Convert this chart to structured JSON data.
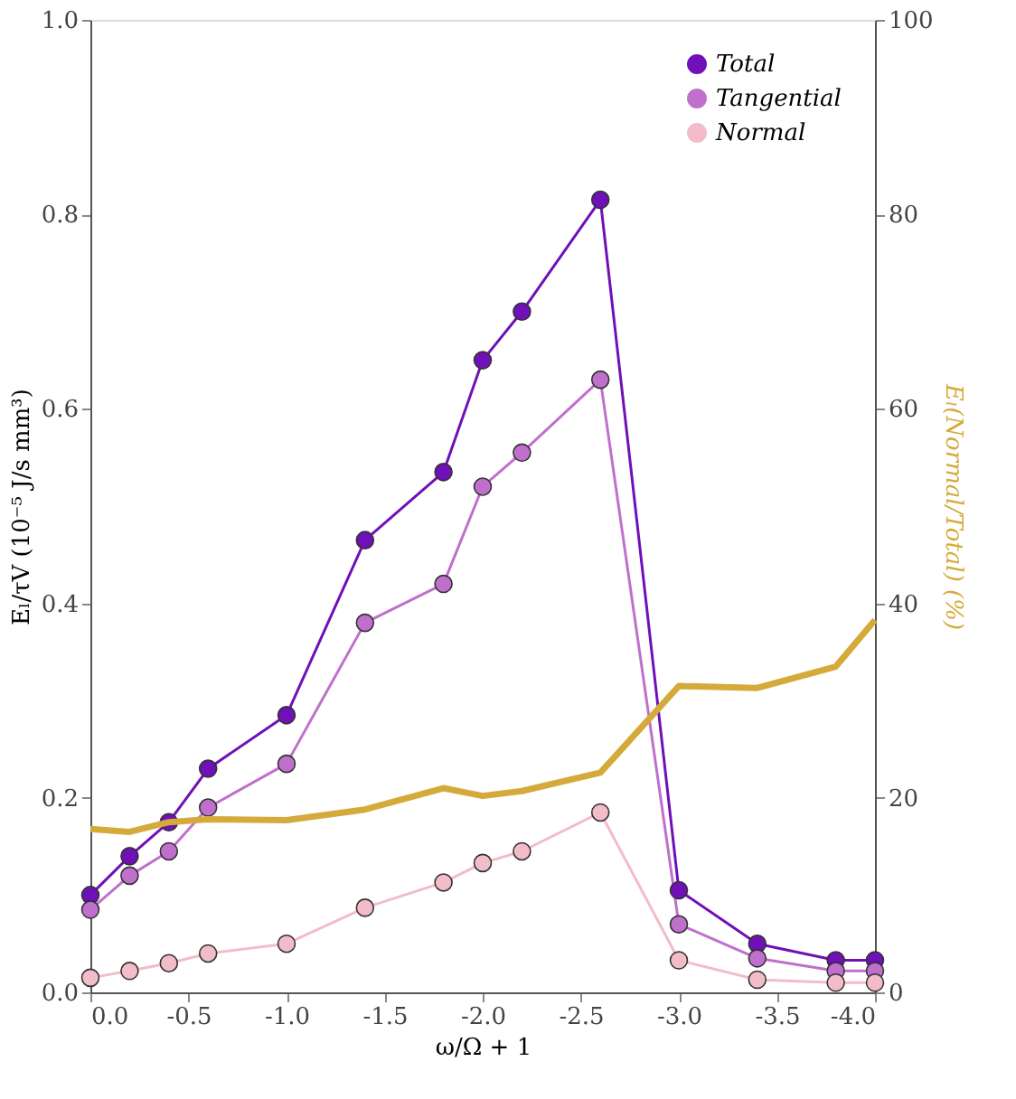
{
  "chart_data": {
    "type": "line",
    "xlabel": "ω/Ω + 1",
    "ylabel": "Eₗ/τV (10⁻⁵ J/s mm³)",
    "y2label": "Eₗ(Normal/Total) (%)",
    "x": [
      0,
      -0.2,
      -0.4,
      -0.6,
      -1.0,
      -1.4,
      -1.8,
      -2.0,
      -2.2,
      -2.6,
      -3.0,
      -3.4,
      -3.8,
      -4.0
    ],
    "series": [
      {
        "name": "Total",
        "color": "#7010b8",
        "values": [
          0.1,
          0.14,
          0.175,
          0.23,
          0.285,
          0.465,
          0.535,
          0.65,
          0.7,
          0.815,
          0.105,
          0.05,
          0.033,
          0.033
        ]
      },
      {
        "name": "Tangential",
        "color": "#c070cc",
        "values": [
          0.085,
          0.12,
          0.145,
          0.19,
          0.235,
          0.38,
          0.42,
          0.52,
          0.555,
          0.63,
          0.07,
          0.035,
          0.022,
          0.022
        ]
      },
      {
        "name": "Normal",
        "color": "#f2bcc8",
        "values": [
          0.015,
          0.022,
          0.03,
          0.04,
          0.05,
          0.087,
          0.113,
          0.133,
          0.145,
          0.185,
          0.033,
          0.013,
          0.01,
          0.01
        ]
      },
      {
        "color": "#d4aa3a",
        "axis": "y2",
        "marker": "none",
        "values": [
          16.8,
          16.5,
          17.5,
          17.8,
          17.7,
          18.8,
          21.0,
          20.2,
          20.7,
          22.6,
          31.5,
          31.3,
          33.5,
          38.3
        ]
      }
    ],
    "xlim": [
      0,
      -4
    ],
    "xticks": [
      {
        "value": 0,
        "label": "0.0"
      },
      {
        "value": -0.5,
        "label": "-0.5"
      },
      {
        "value": -1,
        "label": "-1.0"
      },
      {
        "value": -1.5,
        "label": "-1.5"
      },
      {
        "value": -2,
        "label": "-2.0"
      },
      {
        "value": -2.5,
        "label": "-2.5"
      },
      {
        "value": -3,
        "label": "-3.0"
      },
      {
        "value": -3.5,
        "label": "-3.5"
      },
      {
        "value": -4,
        "label": "-4.0"
      }
    ],
    "ylim": [
      0,
      1
    ],
    "yticks": [
      {
        "value": 0,
        "label": "0.0"
      },
      {
        "value": 0.2,
        "label": "0.2"
      },
      {
        "value": 0.4,
        "label": "0.4"
      },
      {
        "value": 0.6,
        "label": "0.6"
      },
      {
        "value": 0.8,
        "label": "0.8"
      },
      {
        "value": 1,
        "label": "1.0"
      }
    ],
    "y2lim": [
      0,
      100
    ],
    "y2ticks": [
      0,
      20,
      40,
      60,
      80,
      100
    ],
    "legend": "top right",
    "marker": "circle",
    "grid": false
  }
}
